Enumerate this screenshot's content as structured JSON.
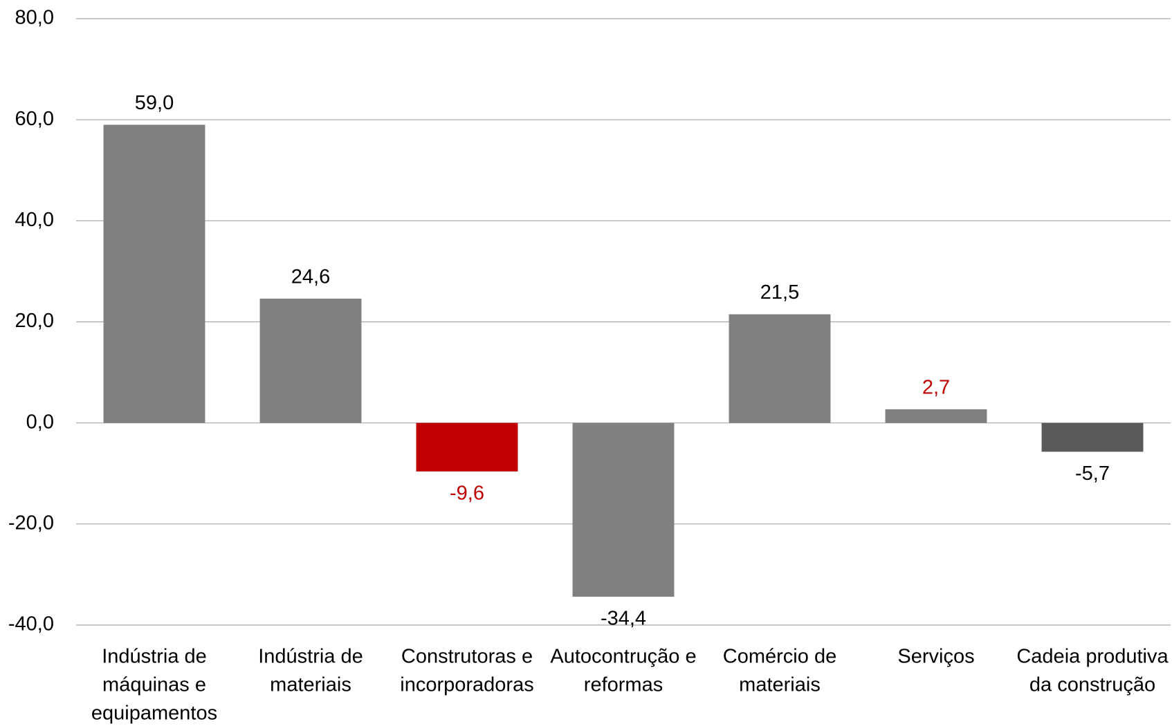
{
  "chart_data": {
    "type": "bar",
    "categories": [
      [
        "Indústria de",
        "máquinas e",
        "equipamentos"
      ],
      [
        "Indústria de",
        "materiais"
      ],
      [
        "Construtoras e",
        "incorporadoras"
      ],
      [
        "Autocontrução e",
        "reformas"
      ],
      [
        "Comércio de",
        "materiais"
      ],
      [
        "Serviços"
      ],
      [
        "Cadeia produtiva",
        "da construção"
      ]
    ],
    "values": [
      59.0,
      24.6,
      -9.6,
      -34.4,
      21.5,
      2.7,
      -5.7
    ],
    "value_labels": [
      "59,0",
      "24,6",
      "-9,6",
      "-34,4",
      "21,5",
      "2,7",
      "-5,7"
    ],
    "colors": [
      "#808080",
      "#808080",
      "#c00000",
      "#808080",
      "#808080",
      "#808080",
      "#595959"
    ],
    "label_colors": [
      "#000000",
      "#000000",
      "#c00000",
      "#000000",
      "#000000",
      "#c00000",
      "#000000"
    ],
    "ylim": [
      -40,
      80
    ],
    "yticks": [
      {
        "value": -40,
        "label": "-40,0"
      },
      {
        "value": -20,
        "label": "-20,0"
      },
      {
        "value": 0,
        "label": "0,0"
      },
      {
        "value": 20,
        "label": "20,0"
      },
      {
        "value": 40,
        "label": "40,0"
      },
      {
        "value": 60,
        "label": "60,0"
      },
      {
        "value": 80,
        "label": "80,0"
      }
    ],
    "grid": true
  }
}
